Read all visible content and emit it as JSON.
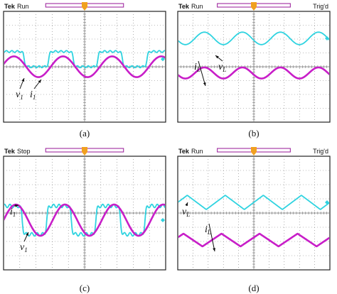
{
  "colors": {
    "voltage": "#2fd3e0",
    "current": "#c81ec8",
    "grid": "#7a7a7a",
    "frame": "#222222",
    "trigger_marker": "#f0a020",
    "acquisition_bar": "#a02aa0"
  },
  "chart_data": [
    {
      "id": "a",
      "type": "line",
      "caption": "(a)",
      "header": {
        "brand": "Tek",
        "status": "Run",
        "trig": ""
      },
      "xlim": [
        0,
        10
      ],
      "ylim": [
        -4,
        4
      ],
      "grid": true,
      "series": [
        {
          "key": "voltage",
          "shape": "square",
          "offset": 0.55,
          "amplitude": 0.55,
          "cycles": 3.3,
          "phase": 0.08
        },
        {
          "key": "current",
          "shape": "sine",
          "offset": 0.0,
          "amplitude": 0.75,
          "cycles": 3.3,
          "phase": 0.04
        }
      ],
      "annotations": [
        {
          "main": "v",
          "sub": "1"
        },
        {
          "main": "i",
          "sub": "1"
        }
      ]
    },
    {
      "id": "b",
      "type": "line",
      "caption": "(b)",
      "header": {
        "brand": "Tek",
        "status": "Run",
        "trig": "Trig'd"
      },
      "xlim": [
        0,
        10
      ],
      "ylim": [
        -4,
        4
      ],
      "grid": true,
      "series": [
        {
          "key": "voltage",
          "shape": "sine",
          "offset": 2.05,
          "amplitude": 0.45,
          "cycles": 4.0,
          "phase": 0.55
        },
        {
          "key": "current",
          "shape": "sine",
          "offset": -0.45,
          "amplitude": 0.4,
          "cycles": 4.0,
          "phase": 0.55
        }
      ],
      "annotations": [
        {
          "main": "i",
          "sub": "L"
        },
        {
          "main": "v",
          "sub": "L"
        }
      ]
    },
    {
      "id": "c",
      "type": "line",
      "caption": "(c)",
      "header": {
        "brand": "Tek",
        "status": "Stop",
        "trig": ""
      },
      "xlim": [
        0,
        10
      ],
      "ylim": [
        -4,
        4
      ],
      "grid": true,
      "series": [
        {
          "key": "voltage",
          "shape": "square",
          "offset": -0.5,
          "amplitude": 1.0,
          "cycles": 3.3,
          "phase": 0.12
        },
        {
          "key": "current",
          "shape": "sine",
          "offset": -0.5,
          "amplitude": 1.1,
          "cycles": 3.3,
          "phase": 0.0
        }
      ],
      "annotations": [
        {
          "main": "i",
          "sub": "1"
        },
        {
          "main": "v",
          "sub": "1"
        }
      ]
    },
    {
      "id": "d",
      "type": "line",
      "caption": "(d)",
      "header": {
        "brand": "Tek",
        "status": "Run",
        "trig": "Trig'd"
      },
      "xlim": [
        0,
        10
      ],
      "ylim": [
        -4,
        4
      ],
      "grid": true,
      "series": [
        {
          "key": "voltage",
          "shape": "triangle",
          "offset": 0.75,
          "amplitude": 0.5,
          "cycles": 4.0,
          "phase": 0.25
        },
        {
          "key": "current",
          "shape": "triangle",
          "offset": -1.9,
          "amplitude": 0.45,
          "cycles": 4.0,
          "phase": 0.35
        }
      ],
      "annotations": [
        {
          "main": "v",
          "sub": "L"
        },
        {
          "main": "i",
          "sub": "L"
        }
      ]
    }
  ]
}
